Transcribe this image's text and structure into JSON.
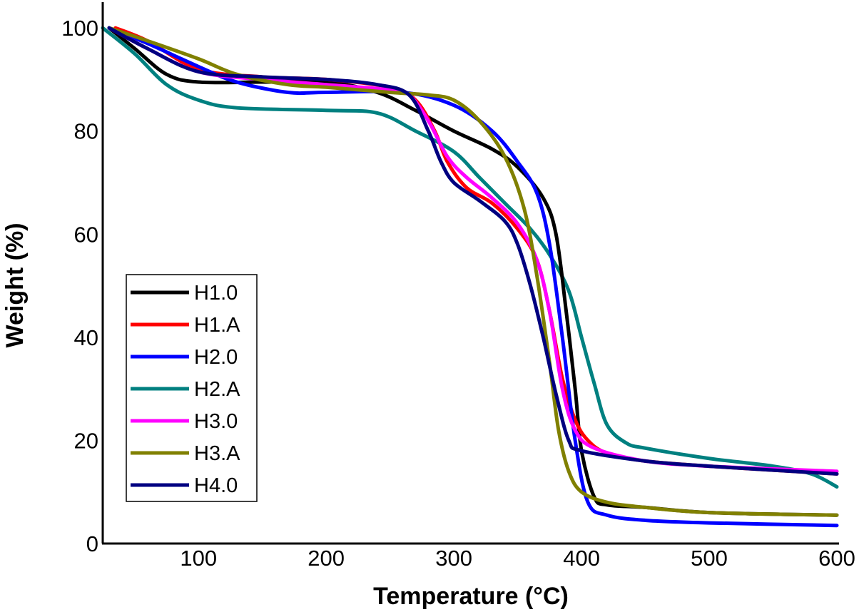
{
  "chart_data": {
    "type": "line",
    "title": "",
    "xlabel": "Temperature (°C)",
    "ylabel": "Weight (%)",
    "xlim": [
      25,
      600
    ],
    "ylim": [
      0,
      105
    ],
    "xticks": [
      100,
      200,
      300,
      400,
      500,
      600
    ],
    "yticks": [
      0,
      20,
      40,
      60,
      80,
      100
    ],
    "grid": false,
    "legend_position": "bottom-left",
    "series": [
      {
        "name": "H1.0",
        "color": "#000000",
        "x": [
          30,
          50,
          75,
          100,
          150,
          200,
          240,
          270,
          300,
          330,
          350,
          370,
          380,
          388,
          395,
          400,
          410,
          420,
          450,
          500,
          600
        ],
        "y": [
          100,
          96,
          91,
          89.5,
          89.5,
          89.5,
          87.5,
          84,
          80,
          76.5,
          73,
          67,
          60,
          45,
          30,
          18,
          9,
          7.5,
          7,
          6,
          5.5
        ]
      },
      {
        "name": "H1.A",
        "color": "#ff0000",
        "x": [
          35,
          60,
          100,
          150,
          200,
          250,
          270,
          285,
          295,
          310,
          330,
          350,
          365,
          375,
          385,
          395,
          405,
          420,
          450,
          500,
          600
        ],
        "y": [
          100,
          97.5,
          92,
          90.5,
          90,
          88.5,
          86,
          80,
          74,
          69,
          66,
          61,
          55,
          45,
          32,
          24,
          20,
          17.5,
          16,
          15,
          13.5
        ]
      },
      {
        "name": "H2.0",
        "color": "#0000ff",
        "x": [
          30,
          60,
          100,
          130,
          170,
          200,
          260,
          300,
          330,
          350,
          365,
          375,
          385,
          395,
          405,
          420,
          450,
          500,
          600
        ],
        "y": [
          100,
          97,
          92.5,
          89.5,
          87.5,
          87.5,
          87.5,
          85,
          80,
          74,
          68,
          58,
          40,
          20,
          8,
          5.5,
          4.5,
          4,
          3.5
        ]
      },
      {
        "name": "H2.A",
        "color": "#008080",
        "x": [
          25,
          50,
          75,
          100,
          130,
          200,
          240,
          270,
          300,
          320,
          340,
          360,
          375,
          390,
          400,
          410,
          420,
          435,
          450,
          500,
          550,
          580,
          600
        ],
        "y": [
          100,
          95,
          89,
          86,
          84.5,
          84,
          83.5,
          80,
          76,
          71,
          66,
          61,
          56,
          49,
          40,
          31,
          23,
          19.5,
          18.5,
          16.5,
          15,
          13.5,
          11
        ]
      },
      {
        "name": "H3.0",
        "color": "#ff00ff",
        "x": [
          30,
          60,
          100,
          150,
          200,
          250,
          265,
          280,
          295,
          310,
          330,
          350,
          365,
          375,
          385,
          395,
          410,
          450,
          500,
          600
        ],
        "y": [
          100,
          96,
          91.5,
          90,
          89,
          88,
          87,
          82,
          75,
          71,
          67,
          62,
          55,
          45,
          30,
          22,
          18.5,
          16,
          15,
          14
        ]
      },
      {
        "name": "H3.A",
        "color": "#808000",
        "x": [
          30,
          60,
          100,
          130,
          170,
          200,
          250,
          280,
          300,
          320,
          340,
          355,
          365,
          375,
          382,
          390,
          400,
          420,
          450,
          500,
          600
        ],
        "y": [
          100,
          97.5,
          94,
          91,
          89,
          88.5,
          87.5,
          87,
          86,
          82,
          75,
          65,
          52,
          35,
          22,
          14,
          10,
          8,
          7,
          6,
          5.5
        ]
      },
      {
        "name": "H4.0",
        "color": "#000080",
        "x": [
          30,
          60,
          100,
          150,
          200,
          240,
          265,
          280,
          290,
          300,
          320,
          340,
          350,
          360,
          370,
          380,
          390,
          400,
          450,
          500,
          600
        ],
        "y": [
          100,
          96,
          91.5,
          90.5,
          90,
          89,
          87,
          80,
          74,
          70,
          66.5,
          62.5,
          58,
          50,
          40,
          29,
          20,
          18,
          16,
          15,
          13.5
        ]
      }
    ]
  }
}
